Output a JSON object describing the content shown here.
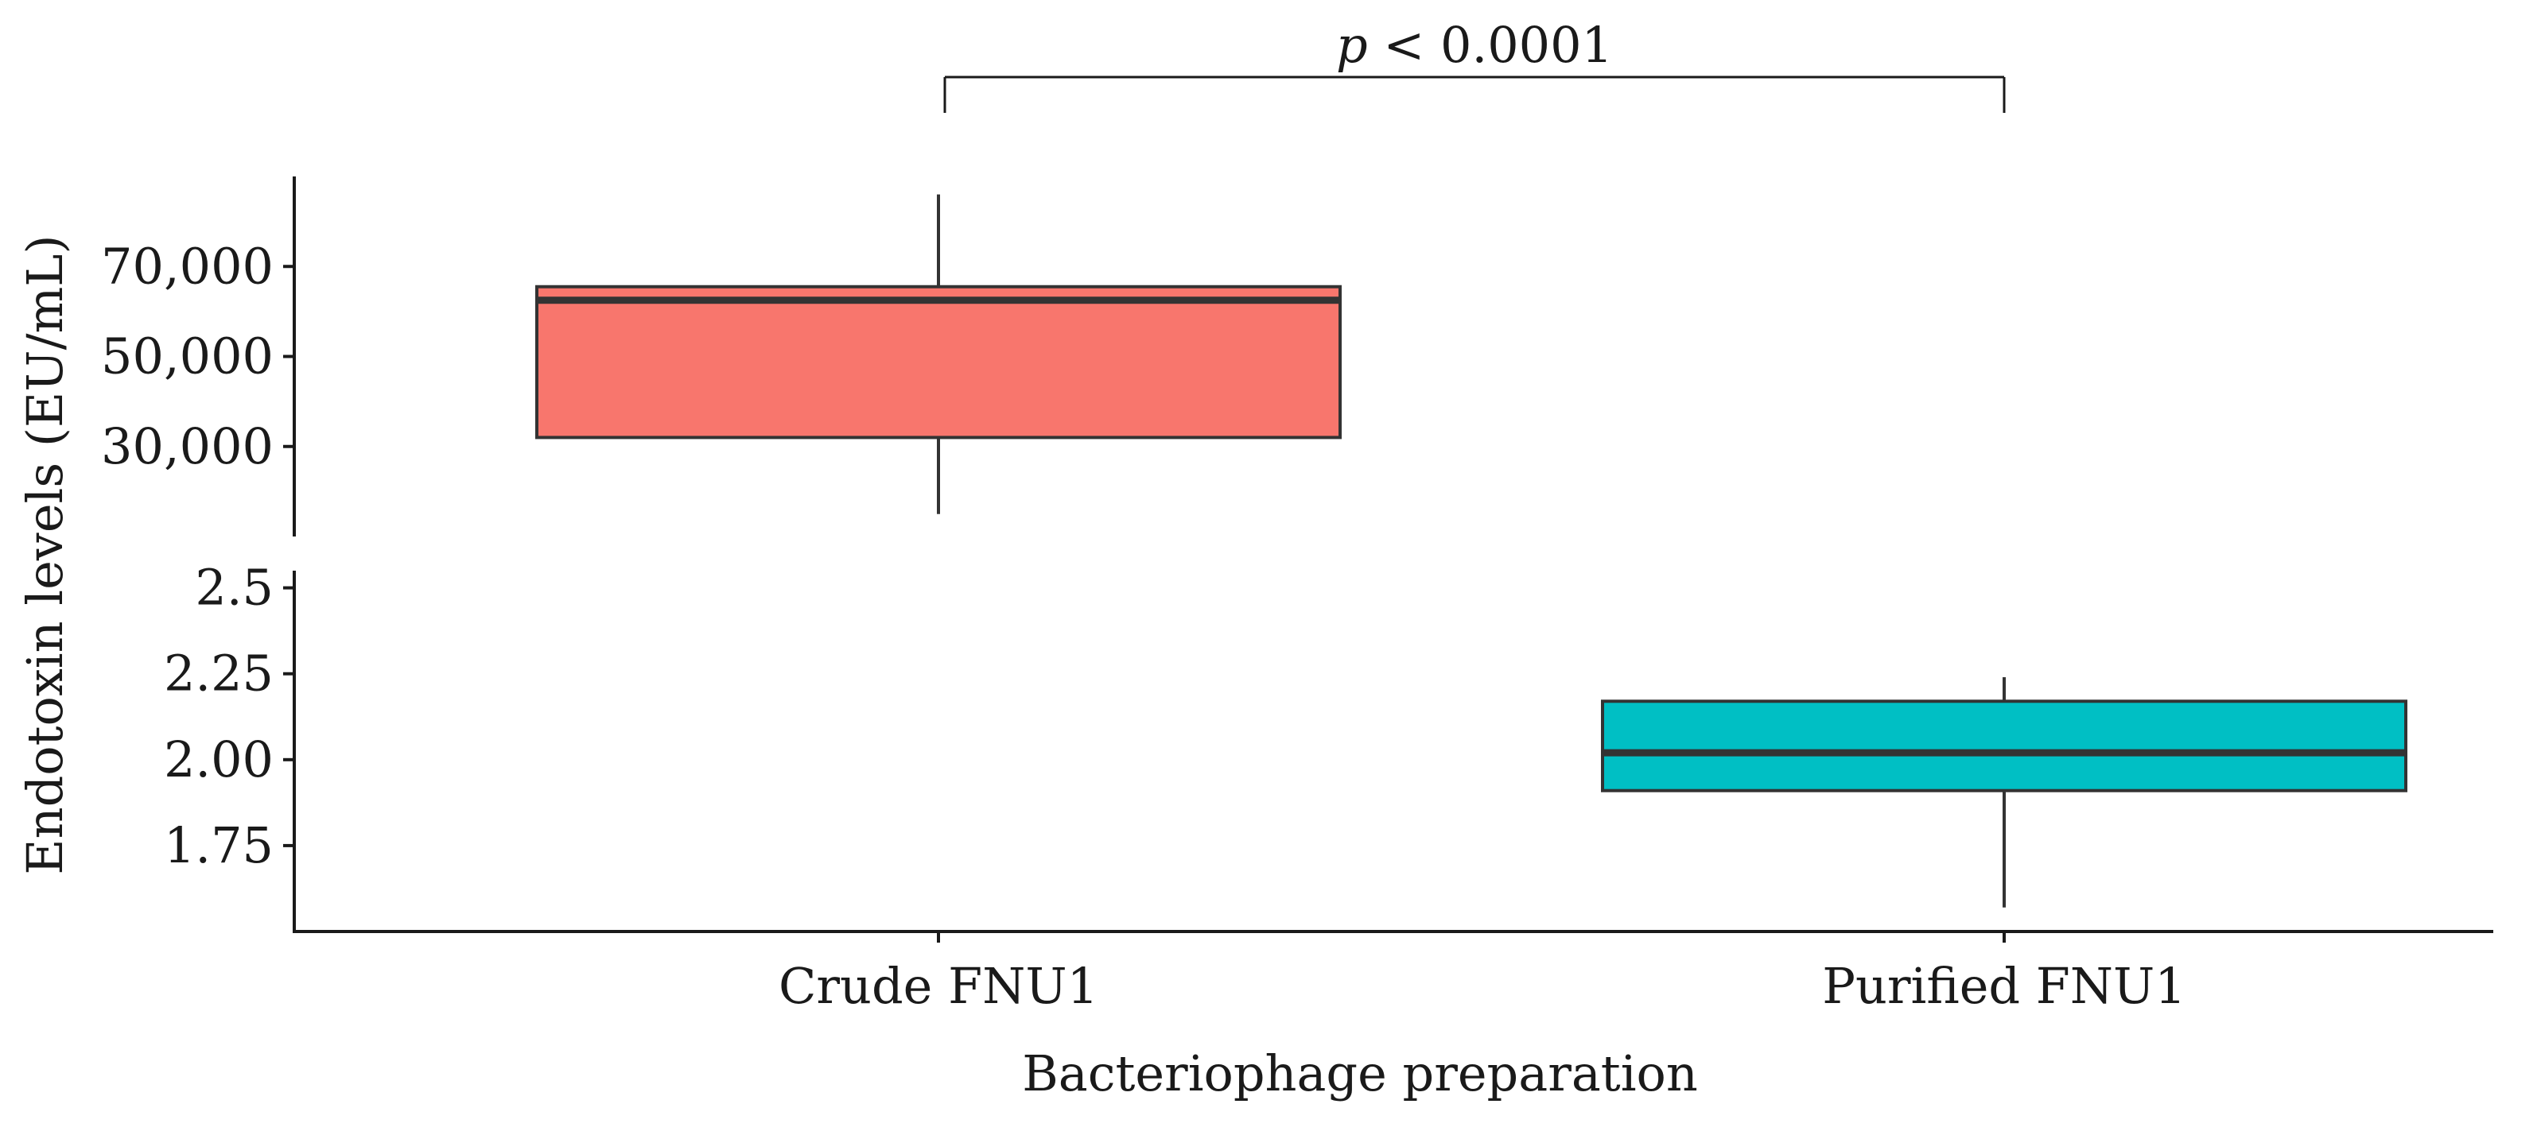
{
  "chart_data": {
    "type": "boxplot",
    "xlabel": "Bacteriophage preparation",
    "ylabel": "Endotoxin levels (EU/mL)",
    "categories": [
      "Crude FNU1",
      "Purified FNU1"
    ],
    "y_axis_break": true,
    "upper_panel": {
      "ylim": [
        10000,
        90000
      ],
      "ticks": [
        30000,
        50000,
        70000
      ],
      "tick_labels": [
        "30,000",
        "50,000",
        "70,000"
      ]
    },
    "lower_panel": {
      "ylim": [
        1.5,
        2.55
      ],
      "ticks": [
        1.75,
        2.0,
        2.25,
        2.5
      ],
      "tick_labels": [
        "1.75",
        "2.00",
        "2.25",
        "2.5"
      ]
    },
    "boxes": [
      {
        "category": "Crude FNU1",
        "panel": "upper",
        "min": 15000,
        "q1": 32000,
        "median": 62500,
        "q3": 65500,
        "max": 86000,
        "fill": "#F8766D"
      },
      {
        "category": "Purified FNU1",
        "panel": "lower",
        "min": 1.57,
        "q1": 1.91,
        "median": 2.02,
        "q3": 2.17,
        "max": 2.24,
        "fill": "#00BFC4"
      }
    ],
    "significance": {
      "label_italic": "p",
      "label_rest": " < 0.0001",
      "between": [
        "Crude FNU1",
        "Purified FNU1"
      ]
    },
    "grid": false,
    "legend": "none"
  }
}
